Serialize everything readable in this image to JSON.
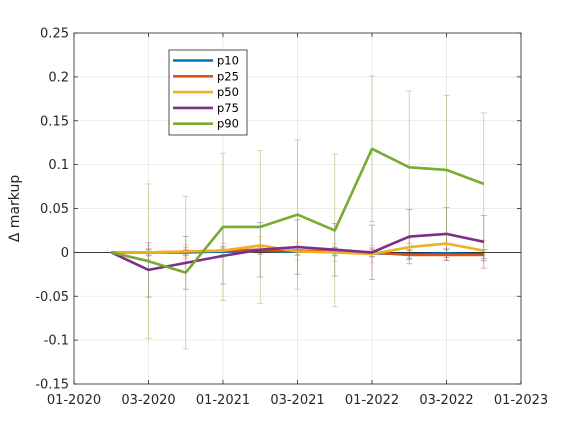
{
  "chart_data": {
    "type": "line",
    "ylabel": "Δ markup",
    "xlabel": "",
    "xlim": [
      0,
      12
    ],
    "ylim": [
      -0.15,
      0.25
    ],
    "x_ticks": [
      {
        "x": 0,
        "label": "01-2020"
      },
      {
        "x": 2,
        "label": "03-2020"
      },
      {
        "x": 4,
        "label": "01-2021"
      },
      {
        "x": 6,
        "label": "03-2021"
      },
      {
        "x": 8,
        "label": "01-2022"
      },
      {
        "x": 10,
        "label": "03-2022"
      },
      {
        "x": 12,
        "label": "01-2023"
      }
    ],
    "y_ticks": [
      {
        "y": 0.25,
        "label": "0.25"
      },
      {
        "y": 0.2,
        "label": "0.2"
      },
      {
        "y": 0.15,
        "label": "0.15"
      },
      {
        "y": 0.1,
        "label": "0.1"
      },
      {
        "y": 0.05,
        "label": "0.05"
      },
      {
        "y": 0,
        "label": "0"
      },
      {
        "y": -0.05,
        "label": "-0.05"
      },
      {
        "y": -0.1,
        "label": "-0.1"
      },
      {
        "y": -0.15,
        "label": "-0.15"
      }
    ],
    "grid": true,
    "legend_position": "top-left",
    "x": [
      1,
      2,
      3,
      4,
      5,
      6,
      7,
      8,
      9,
      10,
      11
    ],
    "series": [
      {
        "name": "p10",
        "color": "#0072BD",
        "values": [
          0,
          0,
          0,
          0.001,
          0.002,
          0.001,
          0.001,
          -0.001,
          -0.002,
          -0.001,
          -0.002
        ],
        "err": [
          0,
          0.003,
          0.003,
          0.004,
          0.004,
          0.004,
          0.004,
          0.004,
          0.005,
          0.005,
          0.005
        ]
      },
      {
        "name": "p25",
        "color": "#D95319",
        "values": [
          0,
          0,
          0.001,
          0.002,
          0.003,
          0.002,
          0.001,
          0,
          -0.003,
          -0.003,
          -0.003
        ],
        "err": [
          0,
          0.004,
          0.005,
          0.005,
          0.005,
          0.005,
          0.005,
          0.005,
          0.005,
          0.006,
          0.006
        ]
      },
      {
        "name": "p50",
        "color": "#EDB120",
        "values": [
          0,
          0,
          0.001,
          0.002,
          0.008,
          0.001,
          0,
          -0.002,
          0.006,
          0.01,
          0.002
        ],
        "err": [
          0,
          0.008,
          0.008,
          0.008,
          0.01,
          0.01,
          0.01,
          0.01,
          0.01,
          0.012,
          0.012
        ]
      },
      {
        "name": "p75",
        "color": "#7E2F8E",
        "values": [
          0,
          -0.02,
          -0.012,
          -0.004,
          0.003,
          0.006,
          0.003,
          0,
          0.018,
          0.021,
          0.012
        ],
        "err": [
          0,
          0.031,
          0.03,
          0.032,
          0.031,
          0.031,
          0.03,
          0.031,
          0.031,
          0.03,
          0.03
        ]
      },
      {
        "name": "p90",
        "color": "#77AC30",
        "values": [
          0,
          -0.01,
          -0.023,
          0.029,
          0.029,
          0.043,
          0.025,
          0.118,
          0.097,
          0.094,
          0.078
        ],
        "err": [
          0,
          0.088,
          0.087,
          0.084,
          0.087,
          0.085,
          0.087,
          0.083,
          0.087,
          0.085,
          0.081
        ]
      }
    ]
  }
}
